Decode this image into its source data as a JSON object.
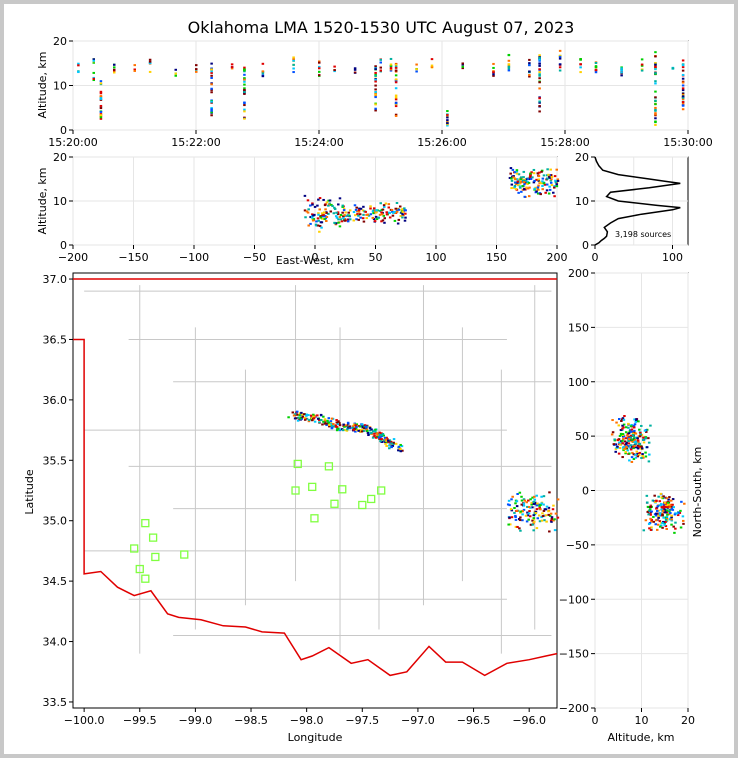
{
  "title": "Oklahoma LMA 1520-1530 UTC August 07, 2023",
  "colors": {
    "state_border": "#e00000",
    "county_line": "#c8c8c8",
    "station": "#80ff40",
    "grid": "#e6e6e6"
  },
  "chart_data": [
    {
      "panel": "time-height",
      "type": "scatter",
      "ylabel": "Altitude, km",
      "xlim": [
        "15:20:00",
        "15:30:00"
      ],
      "ylim": [
        0,
        20
      ],
      "xticks": [
        "15:20:00",
        "15:22:00",
        "15:24:00",
        "15:26:00",
        "15:28:00",
        "15:30:00"
      ],
      "yticks": [
        "0",
        "10",
        "20"
      ],
      "flash_columns": [
        {
          "t": "15:20:05",
          "lo": 13,
          "hi": 15
        },
        {
          "t": "15:20:20",
          "lo": 9.5,
          "hi": 16
        },
        {
          "t": "15:20:27",
          "lo": 2,
          "hi": 11
        },
        {
          "t": "15:20:40",
          "lo": 12,
          "hi": 15
        },
        {
          "t": "15:21:00",
          "lo": 13,
          "hi": 15
        },
        {
          "t": "15:21:15",
          "lo": 13,
          "hi": 16
        },
        {
          "t": "15:21:40",
          "lo": 12,
          "hi": 14
        },
        {
          "t": "15:22:00",
          "lo": 13,
          "hi": 15
        },
        {
          "t": "15:22:15",
          "lo": 3,
          "hi": 15
        },
        {
          "t": "15:22:35",
          "lo": 13,
          "hi": 15
        },
        {
          "t": "15:22:47",
          "lo": 2,
          "hi": 15
        },
        {
          "t": "15:23:05",
          "lo": 12,
          "hi": 15
        },
        {
          "t": "15:23:35",
          "lo": 13,
          "hi": 17
        },
        {
          "t": "15:24:00",
          "lo": 12,
          "hi": 16
        },
        {
          "t": "15:24:15",
          "lo": 13,
          "hi": 15
        },
        {
          "t": "15:24:35",
          "lo": 12,
          "hi": 14
        },
        {
          "t": "15:24:55",
          "lo": 4,
          "hi": 15
        },
        {
          "t": "15:25:00",
          "lo": 13,
          "hi": 16
        },
        {
          "t": "15:25:10",
          "lo": 13,
          "hi": 16
        },
        {
          "t": "15:25:15",
          "lo": 3,
          "hi": 15
        },
        {
          "t": "15:25:35",
          "lo": 13,
          "hi": 15
        },
        {
          "t": "15:25:50",
          "lo": 14,
          "hi": 16
        },
        {
          "t": "15:26:05",
          "lo": 1,
          "hi": 7
        },
        {
          "t": "15:26:20",
          "lo": 13,
          "hi": 15
        },
        {
          "t": "15:26:50",
          "lo": 12,
          "hi": 15
        },
        {
          "t": "15:27:05",
          "lo": 13,
          "hi": 17
        },
        {
          "t": "15:27:25",
          "lo": 12,
          "hi": 16
        },
        {
          "t": "15:27:35",
          "lo": 4,
          "hi": 17
        },
        {
          "t": "15:27:55",
          "lo": 13,
          "hi": 18
        },
        {
          "t": "15:28:15",
          "lo": 13,
          "hi": 16
        },
        {
          "t": "15:28:30",
          "lo": 12,
          "hi": 16
        },
        {
          "t": "15:28:55",
          "lo": 12,
          "hi": 16
        },
        {
          "t": "15:29:15",
          "lo": 13,
          "hi": 16
        },
        {
          "t": "15:29:28",
          "lo": 1,
          "hi": 18
        },
        {
          "t": "15:29:45",
          "lo": 13,
          "hi": 15
        },
        {
          "t": "15:29:55",
          "lo": 3,
          "hi": 16
        }
      ]
    },
    {
      "panel": "east-west-altitude",
      "type": "scatter",
      "xlabel": "East-West, km",
      "ylabel": "Altitude, km",
      "xlim": [
        -200,
        200
      ],
      "ylim": [
        0,
        20
      ],
      "xticks": [
        "−200",
        "−150",
        "−100",
        "−50",
        "0",
        "50",
        "100",
        "150",
        "200"
      ],
      "yticks": [
        "0",
        "10",
        "20"
      ],
      "clusters": [
        {
          "x": [
            -10,
            20
          ],
          "z": [
            3,
            12
          ],
          "n": 90
        },
        {
          "x": [
            20,
            75
          ],
          "z": [
            5,
            10
          ],
          "n": 140
        },
        {
          "x": [
            160,
            200
          ],
          "z": [
            11,
            18
          ],
          "n": 160
        }
      ]
    },
    {
      "panel": "altitude-histogram",
      "type": "line",
      "xticks": [
        "0",
        "100"
      ],
      "yticks": [
        "0",
        "10",
        "20"
      ],
      "xlim": [
        0,
        120
      ],
      "ylim": [
        0,
        20
      ],
      "annotation": "3,198 sources",
      "profile": [
        [
          0,
          0
        ],
        [
          5,
          0.5
        ],
        [
          8,
          1
        ],
        [
          12,
          1.5
        ],
        [
          15,
          2
        ],
        [
          16,
          3
        ],
        [
          12,
          4
        ],
        [
          20,
          5
        ],
        [
          30,
          6
        ],
        [
          60,
          7
        ],
        [
          100,
          8
        ],
        [
          110,
          8.5
        ],
        [
          80,
          9
        ],
        [
          30,
          10
        ],
        [
          15,
          11
        ],
        [
          20,
          12
        ],
        [
          70,
          13
        ],
        [
          110,
          14
        ],
        [
          90,
          14.5
        ],
        [
          70,
          15
        ],
        [
          30,
          16
        ],
        [
          10,
          17
        ],
        [
          5,
          18
        ],
        [
          2,
          19
        ],
        [
          0,
          20
        ]
      ]
    },
    {
      "panel": "plan-view-map",
      "type": "scatter",
      "xlabel": "Longitude",
      "ylabel": "Latitude",
      "xlim": [
        -100.1,
        -95.75
      ],
      "ylim": [
        33.45,
        37.05
      ],
      "xticks": [
        "−100.0",
        "−99.5",
        "−99.0",
        "−98.5",
        "−98.0",
        "−97.5",
        "−97.0",
        "−96.5",
        "−96.0"
      ],
      "yticks": [
        "33.5",
        "34.0",
        "34.5",
        "35.0",
        "35.5",
        "36.0",
        "36.5",
        "37.0"
      ],
      "storm_line": [
        [
          -98.15,
          35.88
        ],
        [
          -97.9,
          35.85
        ],
        [
          -97.7,
          35.79
        ],
        [
          -97.5,
          35.77
        ],
        [
          -97.35,
          35.7
        ],
        [
          -97.18,
          35.6
        ]
      ],
      "east_cluster": {
        "lon": [
          -96.2,
          -95.75
        ],
        "lat": [
          34.9,
          35.25
        ]
      },
      "stations": [
        [
          -98.08,
          35.47
        ],
        [
          -97.8,
          35.45
        ],
        [
          -98.1,
          35.25
        ],
        [
          -97.95,
          35.28
        ],
        [
          -97.68,
          35.26
        ],
        [
          -97.33,
          35.25
        ],
        [
          -97.42,
          35.18
        ],
        [
          -97.75,
          35.14
        ],
        [
          -97.5,
          35.13
        ],
        [
          -97.93,
          35.02
        ],
        [
          -99.45,
          34.98
        ],
        [
          -99.38,
          34.86
        ],
        [
          -99.55,
          34.77
        ],
        [
          -99.1,
          34.72
        ],
        [
          -99.36,
          34.7
        ],
        [
          -99.5,
          34.6
        ],
        [
          -99.45,
          34.52
        ]
      ]
    },
    {
      "panel": "altitude-north-south",
      "type": "scatter",
      "xlabel": "Altitude, km",
      "ylabel": "North-South, km",
      "xlim": [
        0,
        20
      ],
      "ylim": [
        -200,
        200
      ],
      "xticks": [
        "0",
        "10",
        "20"
      ],
      "yticks": [
        "−200",
        "−150",
        "−100",
        "−50",
        "0",
        "50",
        "100",
        "150",
        "200"
      ],
      "clusters": [
        {
          "z": [
            3,
            12
          ],
          "y": [
            25,
            70
          ],
          "n": 220
        },
        {
          "z": [
            10,
            19
          ],
          "y": [
            -40,
            0
          ],
          "n": 180
        }
      ]
    }
  ]
}
